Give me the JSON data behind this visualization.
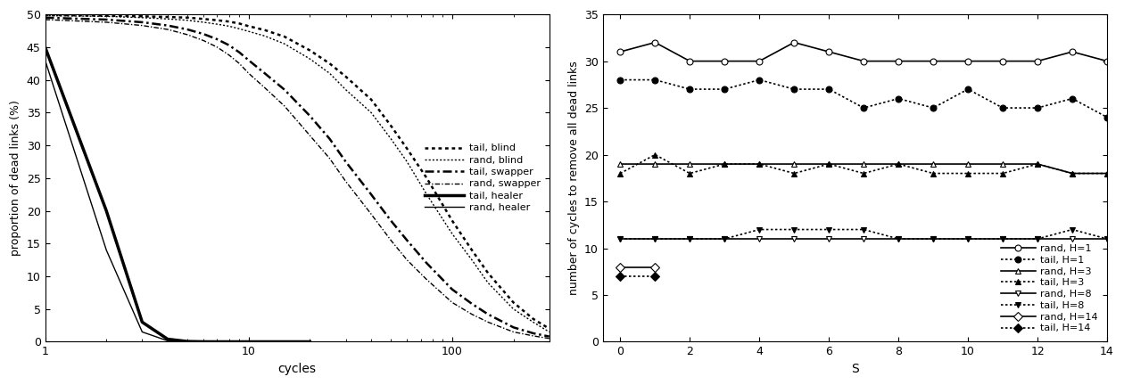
{
  "left_chart": {
    "xlabel": "cycles",
    "ylabel": "proportion of dead links (%)",
    "ylim": [
      0,
      50
    ],
    "xlim": [
      1,
      300
    ],
    "yticks": [
      0,
      5,
      10,
      15,
      20,
      25,
      30,
      35,
      40,
      45,
      50
    ],
    "series": [
      {
        "label": "tail, blind",
        "ls_key": "dotted_thick",
        "x": [
          1,
          2,
          3,
          4,
          5,
          6,
          7,
          8,
          9,
          10,
          12,
          15,
          20,
          25,
          30,
          40,
          50,
          60,
          75,
          100,
          125,
          150,
          200,
          250,
          300
        ],
        "y": [
          49.9,
          49.8,
          49.7,
          49.6,
          49.5,
          49.3,
          49.1,
          48.9,
          48.6,
          48.2,
          47.6,
          46.6,
          44.5,
          42.5,
          40.5,
          37.0,
          33.0,
          29.5,
          25.0,
          18.5,
          14.0,
          10.5,
          6.0,
          3.5,
          2.0
        ]
      },
      {
        "label": "rand, blind",
        "ls_key": "dotted_thin",
        "x": [
          1,
          2,
          3,
          4,
          5,
          6,
          7,
          8,
          9,
          10,
          12,
          15,
          20,
          25,
          30,
          40,
          50,
          60,
          75,
          100,
          125,
          150,
          200,
          250,
          300
        ],
        "y": [
          49.8,
          49.7,
          49.5,
          49.3,
          49.1,
          48.8,
          48.5,
          48.2,
          47.8,
          47.4,
          46.7,
          45.5,
          43.2,
          41.0,
          38.5,
          35.0,
          31.0,
          27.5,
          22.5,
          16.5,
          12.5,
          9.0,
          5.0,
          3.0,
          1.5
        ]
      },
      {
        "label": "tail, swapper",
        "ls_key": "dashdot_thick",
        "x": [
          1,
          2,
          3,
          4,
          5,
          6,
          7,
          8,
          9,
          10,
          12,
          15,
          20,
          25,
          30,
          40,
          50,
          60,
          75,
          100,
          125,
          150,
          200,
          250,
          300
        ],
        "y": [
          49.5,
          49.2,
          48.8,
          48.3,
          47.7,
          47.0,
          46.2,
          45.3,
          44.2,
          43.0,
          41.0,
          38.5,
          34.5,
          31.0,
          27.5,
          22.5,
          18.5,
          15.5,
          12.0,
          8.0,
          5.8,
          4.2,
          2.2,
          1.3,
          0.8
        ]
      },
      {
        "label": "rand, swapper",
        "ls_key": "dashdot_thin",
        "x": [
          1,
          2,
          3,
          4,
          5,
          6,
          7,
          8,
          9,
          10,
          12,
          15,
          20,
          25,
          30,
          40,
          50,
          60,
          75,
          100,
          125,
          150,
          200,
          250,
          300
        ],
        "y": [
          49.2,
          48.8,
          48.3,
          47.7,
          46.9,
          46.0,
          45.0,
          43.8,
          42.5,
          41.0,
          38.8,
          36.0,
          31.5,
          28.0,
          24.5,
          19.5,
          15.5,
          12.5,
          9.5,
          6.0,
          4.2,
          3.0,
          1.5,
          0.9,
          0.5
        ]
      },
      {
        "label": "tail, healer",
        "ls_key": "solid_thick",
        "x": [
          1,
          2,
          3,
          4,
          5,
          6,
          7,
          8,
          9,
          10,
          15,
          20
        ],
        "y": [
          45.0,
          20.0,
          3.0,
          0.4,
          0.05,
          0.005,
          0.001,
          0.0002,
          5e-05,
          1e-05,
          1e-06,
          1e-07
        ]
      },
      {
        "label": "rand, healer",
        "ls_key": "solid_thin",
        "x": [
          1,
          2,
          3,
          4,
          5,
          6,
          7,
          8,
          9,
          10,
          15,
          20
        ],
        "y": [
          43.0,
          14.0,
          1.5,
          0.15,
          0.02,
          0.002,
          0.0004,
          8e-05,
          2e-05,
          5e-06,
          5e-07,
          5e-08
        ]
      }
    ]
  },
  "right_chart": {
    "xlabel": "S",
    "ylabel": "number of cycles to remove all dead links",
    "ylim": [
      0,
      35
    ],
    "xlim": [
      -0.5,
      14
    ],
    "xticks": [
      0,
      2,
      4,
      6,
      8,
      10,
      12,
      14
    ],
    "yticks": [
      0,
      5,
      10,
      15,
      20,
      25,
      30,
      35
    ],
    "series": [
      {
        "label": "rand, H=1",
        "marker": "o",
        "mfc": "white",
        "ls": "solid",
        "lw": 1.2,
        "x": [
          0,
          1,
          2,
          3,
          4,
          5,
          6,
          7,
          8,
          9,
          10,
          11,
          12,
          13,
          14
        ],
        "y": [
          31,
          32,
          30,
          30,
          30,
          32,
          31,
          30,
          30,
          30,
          30,
          30,
          30,
          31,
          30
        ]
      },
      {
        "label": "tail, H=1",
        "marker": "o",
        "mfc": "black",
        "ls": "dotted",
        "lw": 1.2,
        "x": [
          0,
          1,
          2,
          3,
          4,
          5,
          6,
          7,
          8,
          9,
          10,
          11,
          12,
          13,
          14
        ],
        "y": [
          28,
          28,
          27,
          27,
          28,
          27,
          27,
          25,
          26,
          25,
          27,
          25,
          25,
          26,
          24
        ]
      },
      {
        "label": "rand, H=3",
        "marker": "^",
        "mfc": "white",
        "ls": "solid",
        "lw": 1.2,
        "x": [
          0,
          1,
          2,
          3,
          4,
          5,
          6,
          7,
          8,
          9,
          10,
          11,
          12,
          13,
          14
        ],
        "y": [
          19,
          19,
          19,
          19,
          19,
          19,
          19,
          19,
          19,
          19,
          19,
          19,
          19,
          18,
          18
        ]
      },
      {
        "label": "tail, H=3",
        "marker": "^",
        "mfc": "black",
        "ls": "dotted",
        "lw": 1.2,
        "x": [
          0,
          1,
          2,
          3,
          4,
          5,
          6,
          7,
          8,
          9,
          10,
          11,
          12,
          13,
          14
        ],
        "y": [
          18,
          20,
          18,
          19,
          19,
          18,
          19,
          18,
          19,
          18,
          18,
          18,
          19,
          18,
          18
        ]
      },
      {
        "label": "rand, H=8",
        "marker": "v",
        "mfc": "white",
        "ls": "solid",
        "lw": 1.2,
        "x": [
          0,
          1,
          2,
          3,
          4,
          5,
          6,
          7,
          8,
          9,
          10,
          11,
          12,
          13,
          14
        ],
        "y": [
          11,
          11,
          11,
          11,
          11,
          11,
          11,
          11,
          11,
          11,
          11,
          11,
          11,
          11,
          11
        ]
      },
      {
        "label": "tail, H=8",
        "marker": "v",
        "mfc": "black",
        "ls": "dotted",
        "lw": 1.2,
        "x": [
          0,
          1,
          2,
          3,
          4,
          5,
          6,
          7,
          8,
          9,
          10,
          11,
          12,
          13,
          14
        ],
        "y": [
          11,
          11,
          11,
          11,
          12,
          12,
          12,
          12,
          11,
          11,
          11,
          11,
          11,
          12,
          11
        ]
      },
      {
        "label": "rand, H=14",
        "marker": "D",
        "mfc": "white",
        "ls": "solid",
        "lw": 1.2,
        "x": [
          0,
          1
        ],
        "y": [
          8,
          8
        ]
      },
      {
        "label": "tail, H=14",
        "marker": "D",
        "mfc": "black",
        "ls": "dotted",
        "lw": 1.2,
        "x": [
          0,
          1
        ],
        "y": [
          7,
          7
        ]
      }
    ]
  }
}
